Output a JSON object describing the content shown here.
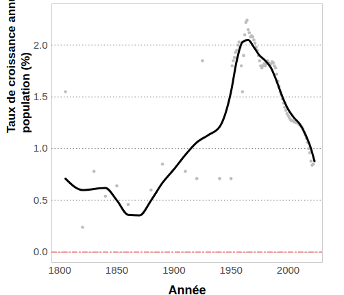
{
  "chart_data": {
    "type": "line",
    "x_label": "Année",
    "y_label": "Taux de croissance annuelle de la\npopulation (%)",
    "xlim": [
      1793,
      2030
    ],
    "ylim": [
      -0.1,
      2.4
    ],
    "xticks": [
      1800,
      1850,
      1900,
      1950,
      2000
    ],
    "yticks": [
      {
        "value": 0,
        "label": "0.0"
      },
      0.5,
      {
        "value": 1,
        "label": "1.0"
      },
      1.5,
      {
        "value": 2,
        "label": "2.0"
      }
    ],
    "grid": true,
    "series": [
      {
        "type": "scatter",
        "color": "#bdbdbd",
        "marker": "circle",
        "x": [
          1805,
          1820,
          1830,
          1840,
          1850,
          1860,
          1880,
          1890,
          1910,
          1920,
          1925,
          1940,
          1950,
          1951,
          1952,
          1953,
          1954,
          1955,
          1956,
          1957,
          1958,
          1959,
          1960,
          1961,
          1962,
          1963,
          1964,
          1965,
          1966,
          1967,
          1968,
          1969,
          1970,
          1971,
          1972,
          1973,
          1974,
          1975,
          1976,
          1977,
          1978,
          1979,
          1980,
          1981,
          1982,
          1983,
          1984,
          1985,
          1986,
          1987,
          1988,
          1989,
          1990,
          1991,
          1992,
          1993,
          1994,
          1995,
          1996,
          1997,
          1998,
          1999,
          2000,
          2001,
          2002,
          2003,
          2004,
          2005,
          2006,
          2007,
          2008,
          2009,
          2010,
          2011,
          2012,
          2013,
          2014,
          2015,
          2016,
          2017,
          2018,
          2019,
          2020,
          2021,
          2022,
          2023
        ],
        "values": [
          1.55,
          0.24,
          0.78,
          0.54,
          0.64,
          0.46,
          0.6,
          0.85,
          0.78,
          0.71,
          1.85,
          0.71,
          0.71,
          1.8,
          1.85,
          1.88,
          1.93,
          1.95,
          2.0,
          2.03,
          1.98,
          1.8,
          1.55,
          1.9,
          2.1,
          2.22,
          2.24,
          2.15,
          2.12,
          2.08,
          2.09,
          2.08,
          2.05,
          2.02,
          1.98,
          1.95,
          1.9,
          1.85,
          1.8,
          1.78,
          1.8,
          1.82,
          1.8,
          1.82,
          1.85,
          1.83,
          1.8,
          1.82,
          1.84,
          1.83,
          1.8,
          1.78,
          1.72,
          1.65,
          1.6,
          1.55,
          1.52,
          1.48,
          1.44,
          1.4,
          1.37,
          1.34,
          1.32,
          1.3,
          1.28,
          1.27,
          1.27,
          1.26,
          1.26,
          1.25,
          1.25,
          1.24,
          1.23,
          1.22,
          1.21,
          1.19,
          1.16,
          1.13,
          1.1,
          1.06,
          1.0,
          0.96,
          0.88,
          0.84,
          0.85,
          0.88
        ]
      },
      {
        "type": "line",
        "color": "#000000",
        "line_style": "solid",
        "x": [
          1805,
          1820,
          1840,
          1850,
          1860,
          1870,
          1880,
          1890,
          1900,
          1910,
          1920,
          1930,
          1940,
          1950,
          1955,
          1960,
          1965,
          1970,
          1975,
          1980,
          1985,
          1990,
          1995,
          2000,
          2005,
          2010,
          2015,
          2020,
          2023
        ],
        "values": [
          0.71,
          0.6,
          0.62,
          0.5,
          0.36,
          0.355,
          0.5,
          0.67,
          0.8,
          0.94,
          1.06,
          1.13,
          1.21,
          1.55,
          1.85,
          2.03,
          2.05,
          1.98,
          1.9,
          1.85,
          1.78,
          1.65,
          1.5,
          1.38,
          1.3,
          1.24,
          1.14,
          1.0,
          0.88
        ]
      },
      {
        "type": "line",
        "color": "#e03030",
        "line_style": "dashdot",
        "x": [
          1793,
          2030
        ],
        "values": [
          0,
          0
        ]
      }
    ]
  }
}
